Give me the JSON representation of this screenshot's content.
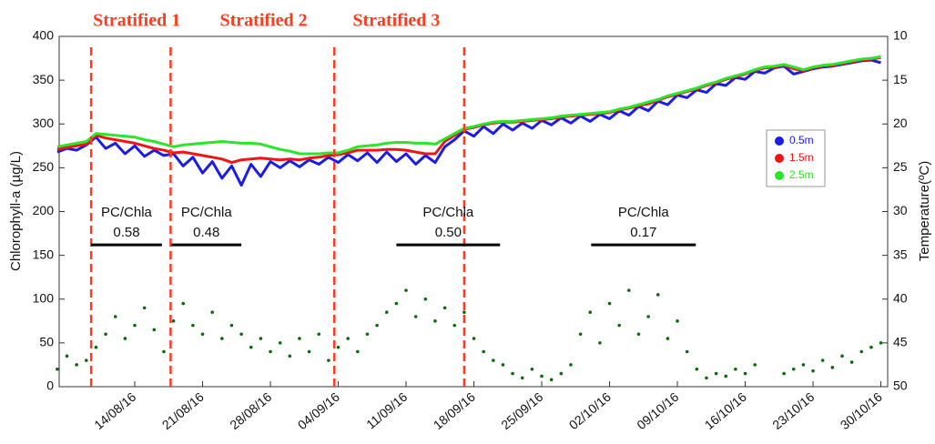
{
  "chart_data": {
    "type": "line",
    "y_label": "Chlorophyll-a (µg/L)",
    "y2_label": "Temperature(ºC)",
    "x": [
      219,
      220,
      221,
      222,
      223,
      224,
      225,
      226,
      227,
      228,
      229,
      230,
      231,
      232,
      233,
      234,
      235,
      236,
      237,
      238,
      239,
      240,
      241,
      242,
      243,
      244,
      245,
      246,
      247,
      248,
      249,
      250,
      251,
      252,
      253,
      254,
      255,
      256,
      257,
      258,
      259,
      260,
      261,
      262,
      263,
      264,
      265,
      266,
      267,
      268,
      269,
      270,
      271,
      272,
      273,
      274,
      275,
      276,
      277,
      278,
      279,
      280,
      281,
      282,
      283,
      284,
      285,
      286,
      287,
      288,
      289,
      290,
      291,
      292,
      293,
      294,
      295,
      296,
      297,
      298,
      299,
      300,
      301,
      302,
      303,
      304
    ],
    "xlim": [
      219.2,
      304.7
    ],
    "xticks": [
      {
        "value": 227,
        "label": "14/08/16"
      },
      {
        "value": 234,
        "label": "21/08/16"
      },
      {
        "value": 241,
        "label": "28/08/16"
      },
      {
        "value": 248,
        "label": "04/09/16"
      },
      {
        "value": 255,
        "label": "11/09/16"
      },
      {
        "value": 262,
        "label": "18/09/16"
      },
      {
        "value": 269,
        "label": "25/09/16"
      },
      {
        "value": 276,
        "label": "02/10/16"
      },
      {
        "value": 283,
        "label": "09/10/16"
      },
      {
        "value": 290,
        "label": "16/10/16"
      },
      {
        "value": 297,
        "label": "23/10/16"
      },
      {
        "value": 304,
        "label": "30/10/16"
      }
    ],
    "ylim": [
      0,
      400
    ],
    "yticks": [
      0,
      50,
      100,
      150,
      200,
      250,
      300,
      350,
      400
    ],
    "y2lim": [
      50,
      10
    ],
    "y2ticks": [
      10,
      15,
      20,
      25,
      30,
      35,
      40,
      45,
      50
    ],
    "legend": "right",
    "series": [
      {
        "mark": "scatter",
        "color": "#0b6b0b",
        "values": [
          20,
          35,
          25,
          30,
          45,
          60,
          80,
          55,
          70,
          90,
          65,
          40,
          75,
          95,
          70,
          60,
          85,
          55,
          70,
          60,
          45,
          55,
          40,
          50,
          35,
          55,
          40,
          60,
          30,
          45,
          55,
          40,
          60,
          70,
          85,
          95,
          110,
          80,
          100,
          75,
          90,
          70,
          85,
          55,
          40,
          30,
          25,
          15,
          10,
          20,
          12,
          8,
          15,
          25,
          60,
          85,
          50,
          95,
          70,
          110,
          60,
          80,
          105,
          55,
          75,
          40,
          20,
          10,
          15,
          12,
          20,
          15,
          25,
          null,
          null,
          15,
          20,
          25,
          18,
          30,
          22,
          35,
          28,
          40,
          45,
          50
        ]
      },
      {
        "name": "0.5m",
        "axis": "y2",
        "mark": "line",
        "color": "#1c1ce6",
        "values": [
          23.2,
          22.8,
          23.0,
          22.4,
          21.5,
          22.8,
          22.2,
          23.4,
          22.5,
          23.7,
          23.0,
          23.6,
          23.4,
          24.8,
          23.8,
          25.6,
          24.3,
          26.2,
          24.8,
          27.0,
          24.6,
          26.0,
          24.3,
          25.0,
          24.2,
          24.9,
          24.1,
          24.6,
          23.8,
          24.4,
          23.5,
          24.2,
          23.3,
          24.4,
          23.2,
          24.3,
          23.4,
          24.6,
          23.6,
          24.4,
          22.6,
          21.8,
          20.8,
          21.4,
          20.3,
          21.1,
          20.0,
          20.7,
          19.9,
          20.5,
          19.6,
          20.1,
          19.3,
          19.9,
          19.1,
          19.7,
          18.9,
          19.4,
          18.5,
          19.0,
          18.0,
          18.5,
          17.4,
          17.8,
          16.7,
          17.0,
          16.1,
          16.4,
          15.4,
          15.6,
          14.7,
          14.9,
          14.0,
          14.2,
          13.6,
          13.4,
          14.3,
          14.0,
          13.7,
          13.5,
          13.4,
          13.2,
          13.0,
          12.8,
          12.7,
          13.0
        ]
      },
      {
        "name": "1.5m",
        "axis": "y2",
        "mark": "line",
        "color": "#f01414",
        "values": [
          22.9,
          22.7,
          22.5,
          22.3,
          21.3,
          21.6,
          21.8,
          22.0,
          22.2,
          22.5,
          22.8,
          23.0,
          23.3,
          23.2,
          23.4,
          23.6,
          23.8,
          24.0,
          24.4,
          24.1,
          24.0,
          23.9,
          24.0,
          24.1,
          24.0,
          24.1,
          23.9,
          23.8,
          23.6,
          23.5,
          23.3,
          23.0,
          23.0,
          23.0,
          22.9,
          22.9,
          23.0,
          23.2,
          23.4,
          23.4,
          22.0,
          21.3,
          20.6,
          20.4,
          20.1,
          19.9,
          19.8,
          19.8,
          19.7,
          19.6,
          19.5,
          19.4,
          19.2,
          19.1,
          19.0,
          18.9,
          18.8,
          18.7,
          18.4,
          18.2,
          17.9,
          17.7,
          17.3,
          16.9,
          16.6,
          16.3,
          16.0,
          15.6,
          15.3,
          14.9,
          14.6,
          14.3,
          13.9,
          13.6,
          13.5,
          13.3,
          13.7,
          13.9,
          13.6,
          13.4,
          13.3,
          13.1,
          12.9,
          12.7,
          12.6,
          12.4
        ]
      },
      {
        "name": "2.5m",
        "axis": "y2",
        "mark": "line",
        "color": "#2ae62a",
        "values": [
          22.6,
          22.4,
          22.2,
          22.0,
          21.1,
          21.2,
          21.3,
          21.4,
          21.5,
          21.8,
          22.0,
          22.3,
          22.6,
          22.4,
          22.3,
          22.2,
          22.1,
          22.0,
          22.1,
          22.2,
          22.2,
          22.3,
          22.6,
          22.9,
          23.1,
          23.4,
          23.4,
          23.4,
          23.3,
          23.3,
          23.0,
          22.6,
          22.5,
          22.4,
          22.2,
          22.1,
          22.1,
          22.2,
          22.2,
          22.3,
          21.7,
          21.1,
          20.5,
          20.3,
          20.0,
          19.8,
          19.7,
          19.7,
          19.6,
          19.5,
          19.4,
          19.3,
          19.1,
          19.0,
          18.9,
          18.8,
          18.7,
          18.6,
          18.3,
          18.1,
          17.8,
          17.5,
          17.2,
          16.8,
          16.5,
          16.2,
          15.9,
          15.5,
          15.2,
          14.8,
          14.5,
          14.2,
          13.8,
          13.5,
          13.4,
          13.2,
          13.5,
          13.8,
          13.5,
          13.3,
          13.2,
          13.0,
          12.8,
          12.6,
          12.5,
          12.3
        ]
      }
    ],
    "divider_color": "#ff3b1f",
    "dividers": [
      222.5,
      230.7,
      247.6,
      261.0
    ],
    "period_labels": [
      {
        "text": "Stratified 1",
        "x": 227.2
      },
      {
        "text": "Stratified 2",
        "x": 240.3
      },
      {
        "text": "Stratified 3",
        "x": 254.0
      }
    ],
    "ratio_labels": [
      {
        "title": "PC/Chla",
        "ratio": "0.58",
        "x_range": [
          222.5,
          229.8
        ],
        "y": 162
      },
      {
        "title": "PC/Chla",
        "ratio": "0.48",
        "x_range": [
          230.8,
          238.0
        ],
        "y": 162
      },
      {
        "title": "PC/Chla",
        "ratio": "0.50",
        "x_range": [
          254.0,
          264.7
        ],
        "y": 162
      },
      {
        "title": "PC/Chla",
        "ratio": "0.17",
        "x_range": [
          274.1,
          284.9
        ],
        "y": 162
      }
    ]
  }
}
